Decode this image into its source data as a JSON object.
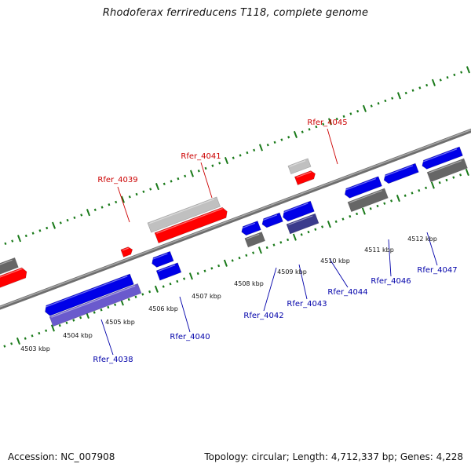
{
  "title": "Rhodoferax ferrireducens T118, complete genome",
  "footer": {
    "accession": "Accession: NC_007908",
    "summary": "Topology: circular; Length: 4,712,337 bp; Genes: 4,228"
  },
  "colors": {
    "forward_gene": "#ff0000",
    "forward_gene_shadow": "#c0c0c0",
    "reverse_gene": "#0000e8",
    "reverse_gene_shadow": "#6a5acd",
    "neighbor_gene": "#666666",
    "highlight_label": "#cc0000",
    "normal_label": "#0000aa",
    "backbone": "#888888",
    "track_ticks": "#1a7a1a"
  },
  "scale_ticks": [
    {
      "label": "4503 kbp"
    },
    {
      "label": "4504 kbp"
    },
    {
      "label": "4505 kbp"
    },
    {
      "label": "4506 kbp"
    },
    {
      "label": "4507 kbp"
    },
    {
      "label": "4508 kbp"
    },
    {
      "label": "4509 kbp"
    },
    {
      "label": "4510 kbp"
    },
    {
      "label": "4511 kbp"
    },
    {
      "label": "4512 kbp"
    }
  ],
  "gene_labels": [
    {
      "name": "Rfer_4039",
      "strand": "forward"
    },
    {
      "name": "Rfer_4041",
      "strand": "forward"
    },
    {
      "name": "Rfer_4045",
      "strand": "forward"
    },
    {
      "name": "Rfer_4038",
      "strand": "reverse"
    },
    {
      "name": "Rfer_4040",
      "strand": "reverse"
    },
    {
      "name": "Rfer_4042",
      "strand": "reverse"
    },
    {
      "name": "Rfer_4043",
      "strand": "reverse"
    },
    {
      "name": "Rfer_4044",
      "strand": "reverse"
    },
    {
      "name": "Rfer_4046",
      "strand": "reverse"
    },
    {
      "name": "Rfer_4047",
      "strand": "reverse"
    }
  ]
}
